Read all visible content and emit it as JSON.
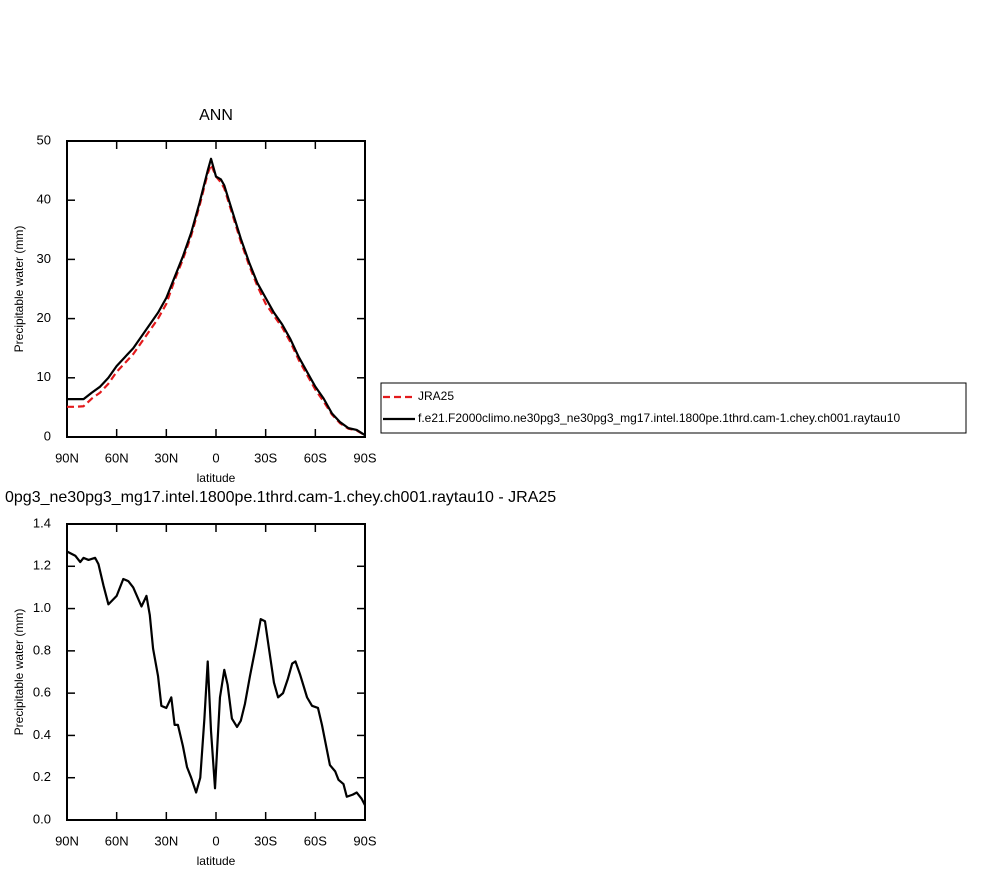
{
  "chart_data": [
    {
      "type": "line",
      "title": "ANN",
      "xlabel": "latitude",
      "ylabel": "Precipitable water (mm)",
      "x": [
        90,
        85,
        80,
        75,
        70,
        65,
        60,
        55,
        50,
        45,
        40,
        35,
        30,
        25,
        20,
        15,
        10,
        5,
        3,
        0,
        -3,
        -5,
        -10,
        -15,
        -20,
        -25,
        -30,
        -35,
        -40,
        -45,
        -50,
        -55,
        -60,
        -65,
        -70,
        -75,
        -80,
        -85,
        -90
      ],
      "series": [
        {
          "name": "JRA25",
          "color": "#e31a1c",
          "linestyle": "dashed",
          "values": [
            5.1,
            5.1,
            5.2,
            6.5,
            7.5,
            9,
            11,
            12.5,
            14,
            16,
            18,
            20,
            22.5,
            26.5,
            30,
            34,
            39,
            44.5,
            46,
            44,
            43,
            42,
            37.5,
            33,
            29,
            25.5,
            22.5,
            20.5,
            18.5,
            16,
            13,
            10.5,
            8,
            6,
            3.8,
            2.3,
            1.4,
            1.1,
            0.3
          ]
        },
        {
          "name": "f.e21.F2000climo.ne30pg3_ne30pg3_mg17.intel.1800pe.1thrd.cam-1.chey.ch001.raytau10",
          "color": "#000000",
          "linestyle": "solid",
          "values": [
            6.4,
            6.4,
            6.4,
            7.5,
            8.5,
            10,
            12,
            13.5,
            15,
            17,
            19,
            21,
            23.5,
            27,
            30.5,
            34.5,
            39.5,
            45,
            47,
            44,
            43.5,
            42.5,
            38,
            33.5,
            29.5,
            26,
            23.5,
            21,
            19,
            16.5,
            13.5,
            11,
            8.5,
            6.5,
            4,
            2.5,
            1.5,
            1.2,
            0.3
          ]
        }
      ],
      "xlim": [
        90,
        -90
      ],
      "xticks": [
        {
          "value": 90,
          "label": "90N"
        },
        {
          "value": 60,
          "label": "60N"
        },
        {
          "value": 30,
          "label": "30N"
        },
        0,
        {
          "value": -30,
          "label": "30S"
        },
        {
          "value": -60,
          "label": "60S"
        },
        {
          "value": -90,
          "label": "90S"
        }
      ],
      "ylim": [
        0,
        50
      ],
      "yticks": [
        0,
        10,
        20,
        30,
        40,
        50
      ],
      "legend": "right"
    },
    {
      "type": "line",
      "title": "0pg3_ne30pg3_mg17.intel.1800pe.1thrd.cam-1.chey.ch001.raytau10 - JRA25",
      "xlabel": "latitude",
      "ylabel": "Precipitable water (mm)",
      "x": [
        90,
        85,
        82,
        80,
        77,
        73,
        71,
        68,
        65,
        60,
        56,
        53,
        50,
        45,
        42,
        40,
        38,
        35,
        33,
        30,
        27,
        25,
        23,
        20,
        17.5,
        15,
        12,
        9.5,
        7,
        5,
        3,
        0.6,
        -2.4,
        -5,
        -7,
        -9.6,
        -12.7,
        -15,
        -17.5,
        -20.5,
        -24,
        -27,
        -29.6,
        -32,
        -35,
        -37.5,
        -40.5,
        -43.5,
        -46,
        -48,
        -50.7,
        -55,
        -58,
        -61.6,
        -64,
        -68.8,
        -72,
        -74,
        -77,
        -79,
        -82.6,
        -85,
        -88,
        -90
      ],
      "series": [
        {
          "color": "#000000",
          "linestyle": "solid",
          "values": [
            1.27,
            1.25,
            1.22,
            1.24,
            1.23,
            1.24,
            1.21,
            1.11,
            1.02,
            1.06,
            1.14,
            1.13,
            1.1,
            1.01,
            1.06,
            0.97,
            0.81,
            0.68,
            0.54,
            0.53,
            0.58,
            0.45,
            0.45,
            0.35,
            0.25,
            0.2,
            0.13,
            0.2,
            0.48,
            0.75,
            0.42,
            0.15,
            0.58,
            0.71,
            0.64,
            0.48,
            0.44,
            0.47,
            0.55,
            0.68,
            0.82,
            0.95,
            0.94,
            0.81,
            0.65,
            0.58,
            0.6,
            0.67,
            0.74,
            0.75,
            0.69,
            0.58,
            0.54,
            0.53,
            0.45,
            0.26,
            0.23,
            0.19,
            0.17,
            0.11,
            0.12,
            0.13,
            0.1,
            0.07
          ]
        }
      ],
      "xlim": [
        90,
        -90
      ],
      "xticks": [
        {
          "value": 90,
          "label": "90N"
        },
        {
          "value": 60,
          "label": "60N"
        },
        {
          "value": 30,
          "label": "30N"
        },
        0,
        {
          "value": -30,
          "label": "30S"
        },
        {
          "value": -60,
          "label": "60S"
        },
        {
          "value": -90,
          "label": "90S"
        }
      ],
      "ylim": [
        0,
        1.4
      ],
      "yticks": [
        {
          "value": 0,
          "label": "0.0"
        },
        {
          "value": 0.2,
          "label": "0.2"
        },
        {
          "value": 0.4,
          "label": "0.4"
        },
        {
          "value": 0.6,
          "label": "0.6"
        },
        {
          "value": 0.8,
          "label": "0.8"
        },
        {
          "value": 1,
          "label": "1.0"
        },
        {
          "value": 1.2,
          "label": "1.2"
        },
        {
          "value": 1.4,
          "label": "1.4"
        }
      ]
    }
  ]
}
